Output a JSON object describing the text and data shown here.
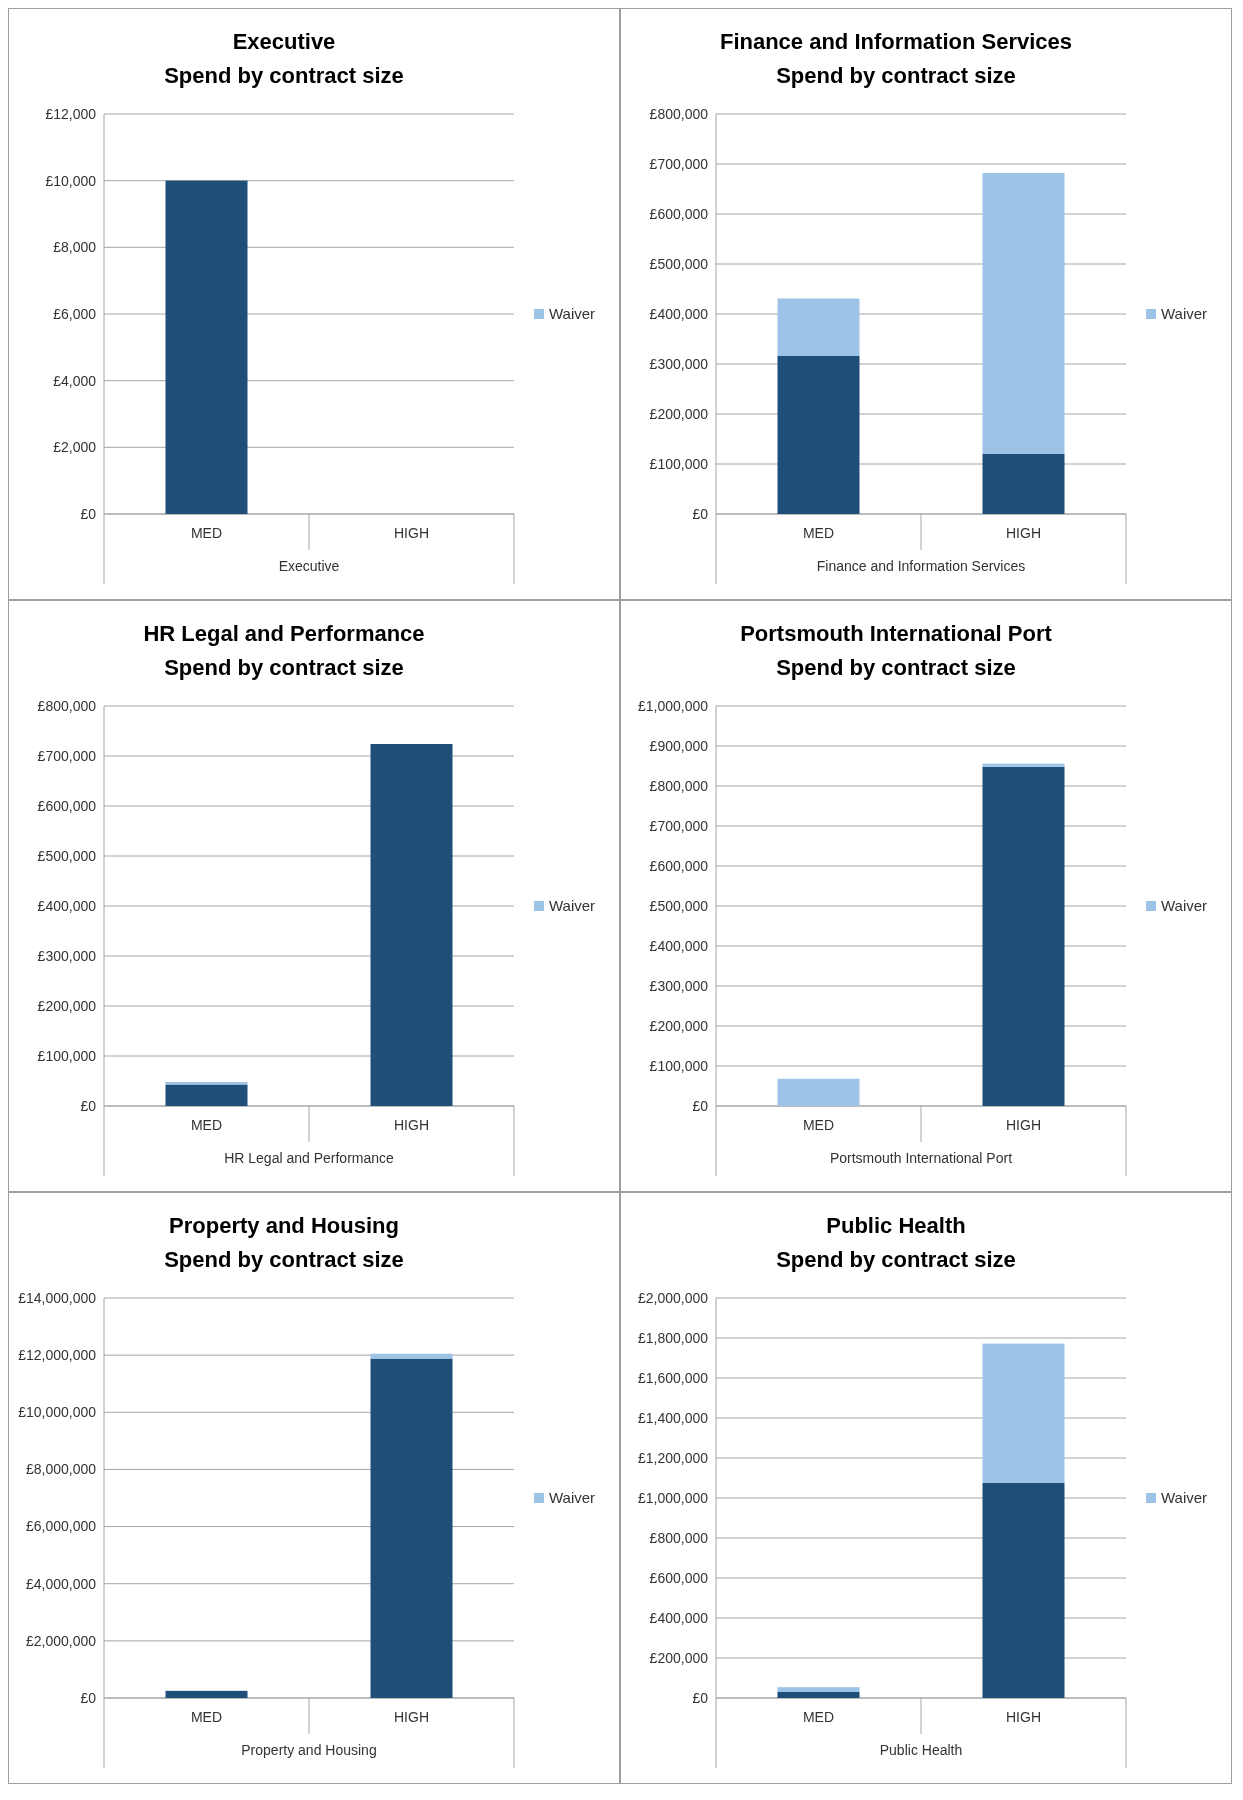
{
  "chart_data": [
    {
      "type": "bar",
      "title": "Executive",
      "subtitle": "Spend by contract size",
      "xlabel": "Executive",
      "categories": [
        "MED",
        "HIGH"
      ],
      "stacked": true,
      "grid": "y",
      "legend": "right",
      "series": [
        {
          "color": "#1f4e79",
          "values": [
            10000,
            null
          ]
        },
        {
          "name": "Waiver",
          "color": "#9dc3e6",
          "values": [
            0,
            null
          ]
        }
      ],
      "ylim": [
        0,
        12000
      ],
      "yticks": [
        {
          "value": 0,
          "label": "£0"
        },
        {
          "value": 2000,
          "label": "£2,000"
        },
        {
          "value": 4000,
          "label": "£4,000"
        },
        {
          "value": 6000,
          "label": "£6,000"
        },
        {
          "value": 8000,
          "label": "£8,000"
        },
        {
          "value": 10000,
          "label": "£10,000"
        },
        {
          "value": 12000,
          "label": "£12,000"
        }
      ]
    },
    {
      "type": "bar",
      "title": "Finance and Information Services",
      "subtitle": "Spend by contract size",
      "xlabel": "Finance and Information Services",
      "categories": [
        "MED",
        "HIGH"
      ],
      "stacked": true,
      "grid": "y",
      "legend": "right",
      "series": [
        {
          "color": "#1f4e79",
          "values": [
            316000,
            120000
          ]
        },
        {
          "name": "Waiver",
          "color": "#9dc3e6",
          "values": [
            115000,
            562000
          ]
        }
      ],
      "ylim": [
        0,
        800000
      ],
      "yticks": [
        {
          "value": 0,
          "label": "£0"
        },
        {
          "value": 100000,
          "label": "£100,000"
        },
        {
          "value": 200000,
          "label": "£200,000"
        },
        {
          "value": 300000,
          "label": "£300,000"
        },
        {
          "value": 400000,
          "label": "£400,000"
        },
        {
          "value": 500000,
          "label": "£500,000"
        },
        {
          "value": 600000,
          "label": "£600,000"
        },
        {
          "value": 700000,
          "label": "£700,000"
        },
        {
          "value": 800000,
          "label": "£800,000"
        }
      ]
    },
    {
      "type": "bar",
      "title": "HR Legal and Performance",
      "subtitle": "Spend by contract size",
      "xlabel": "HR Legal and Performance",
      "categories": [
        "MED",
        "HIGH"
      ],
      "stacked": true,
      "grid": "y",
      "legend": "right",
      "series": [
        {
          "color": "#1f4e79",
          "values": [
            43000,
            724000
          ]
        },
        {
          "name": "Waiver",
          "color": "#9dc3e6",
          "values": [
            5000,
            0
          ]
        }
      ],
      "ylim": [
        0,
        800000
      ],
      "yticks": [
        {
          "value": 0,
          "label": "£0"
        },
        {
          "value": 100000,
          "label": "£100,000"
        },
        {
          "value": 200000,
          "label": "£200,000"
        },
        {
          "value": 300000,
          "label": "£300,000"
        },
        {
          "value": 400000,
          "label": "£400,000"
        },
        {
          "value": 500000,
          "label": "£500,000"
        },
        {
          "value": 600000,
          "label": "£600,000"
        },
        {
          "value": 700000,
          "label": "£700,000"
        },
        {
          "value": 800000,
          "label": "£800,000"
        }
      ]
    },
    {
      "type": "bar",
      "title": "Portsmouth International Port",
      "subtitle": "Spend by contract size",
      "xlabel": "Portsmouth International Port",
      "categories": [
        "MED",
        "HIGH"
      ],
      "stacked": true,
      "grid": "y",
      "legend": "right",
      "series": [
        {
          "color": "#1f4e79",
          "values": [
            0,
            848000
          ]
        },
        {
          "name": "Waiver",
          "color": "#9dc3e6",
          "values": [
            68000,
            8000
          ]
        }
      ],
      "ylim": [
        0,
        1000000
      ],
      "yticks": [
        {
          "value": 0,
          "label": "£0"
        },
        {
          "value": 100000,
          "label": "£100,000"
        },
        {
          "value": 200000,
          "label": "£200,000"
        },
        {
          "value": 300000,
          "label": "£300,000"
        },
        {
          "value": 400000,
          "label": "£400,000"
        },
        {
          "value": 500000,
          "label": "£500,000"
        },
        {
          "value": 600000,
          "label": "£600,000"
        },
        {
          "value": 700000,
          "label": "£700,000"
        },
        {
          "value": 800000,
          "label": "£800,000"
        },
        {
          "value": 900000,
          "label": "£900,000"
        },
        {
          "value": 1000000,
          "label": "£1,000,000"
        }
      ]
    },
    {
      "type": "bar",
      "title": "Property and Housing",
      "subtitle": "Spend by contract size",
      "xlabel": "Property and Housing",
      "categories": [
        "MED",
        "HIGH"
      ],
      "stacked": true,
      "grid": "y",
      "legend": "right",
      "series": [
        {
          "color": "#1f4e79",
          "values": [
            250000,
            11880000
          ]
        },
        {
          "name": "Waiver",
          "color": "#9dc3e6",
          "values": [
            0,
            170000
          ]
        }
      ],
      "ylim": [
        0,
        14000000
      ],
      "yticks": [
        {
          "value": 0,
          "label": "£0"
        },
        {
          "value": 2000000,
          "label": "£2,000,000"
        },
        {
          "value": 4000000,
          "label": "£4,000,000"
        },
        {
          "value": 6000000,
          "label": "£6,000,000"
        },
        {
          "value": 8000000,
          "label": "£8,000,000"
        },
        {
          "value": 10000000,
          "label": "£10,000,000"
        },
        {
          "value": 12000000,
          "label": "£12,000,000"
        },
        {
          "value": 14000000,
          "label": "£14,000,000"
        }
      ]
    },
    {
      "type": "bar",
      "title": "Public Health",
      "subtitle": "Spend by contract size",
      "xlabel": "Public Health",
      "categories": [
        "MED",
        "HIGH"
      ],
      "stacked": true,
      "grid": "y",
      "legend": "right",
      "series": [
        {
          "color": "#1f4e79",
          "values": [
            30000,
            1075000
          ]
        },
        {
          "name": "Waiver",
          "color": "#9dc3e6",
          "values": [
            24000,
            697000
          ]
        }
      ],
      "ylim": [
        0,
        2000000
      ],
      "yticks": [
        {
          "value": 0,
          "label": "£0"
        },
        {
          "value": 200000,
          "label": "£200,000"
        },
        {
          "value": 400000,
          "label": "£400,000"
        },
        {
          "value": 600000,
          "label": "£600,000"
        },
        {
          "value": 800000,
          "label": "£800,000"
        },
        {
          "value": 1000000,
          "label": "£1,000,000"
        },
        {
          "value": 1200000,
          "label": "£1,200,000"
        },
        {
          "value": 1400000,
          "label": "£1,400,000"
        },
        {
          "value": 1600000,
          "label": "£1,600,000"
        },
        {
          "value": 1800000,
          "label": "£1,800,000"
        },
        {
          "value": 2000000,
          "label": "£2,000,000"
        }
      ]
    }
  ]
}
